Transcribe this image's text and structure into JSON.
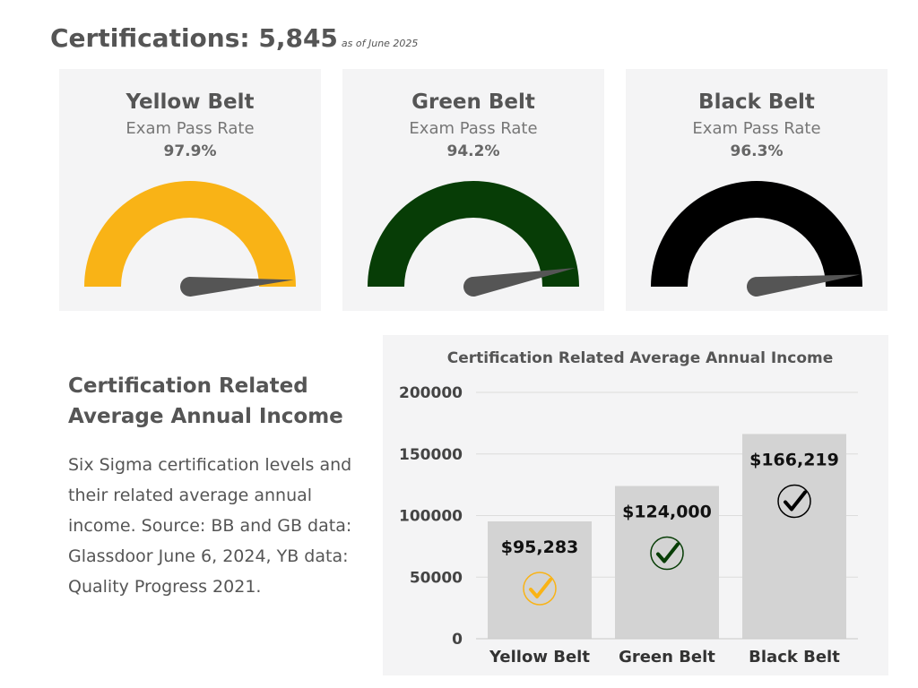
{
  "header": {
    "title": "Certifications: 5,845",
    "as_of": "as of June 2025"
  },
  "gauges": [
    {
      "belt": "Yellow Belt",
      "label": "Exam Pass Rate",
      "value_text": "97.9%",
      "value": 97.9,
      "color": "#f9b316"
    },
    {
      "belt": "Green Belt",
      "label": "Exam Pass Rate",
      "value_text": "94.2%",
      "value": 94.2,
      "color": "#073d06"
    },
    {
      "belt": "Black Belt",
      "label": "Exam Pass Rate",
      "value_text": "96.3%",
      "value": 96.3,
      "color": "#000000"
    }
  ],
  "income_text": {
    "heading": "Certification Related Average Annual Income",
    "body": "Six Sigma certification levels and their related average annual income. Source: BB and GB data: Glassdoor June 6, 2024, YB data: Quality Progress 2021."
  },
  "chart_data": {
    "type": "bar",
    "title": "Certification Related Average Annual Income",
    "categories": [
      "Yellow Belt",
      "Green Belt",
      "Black Belt"
    ],
    "values": [
      95283,
      124000,
      166219
    ],
    "value_labels": [
      "$95,283",
      "$124,000",
      "$166,219"
    ],
    "y_ticks": [
      "0",
      "50000",
      "100000",
      "150000",
      "200000"
    ],
    "ylim": [
      0,
      200000
    ],
    "grid": true,
    "xlabel": "",
    "ylabel": "",
    "check_colors": [
      "#f9b316",
      "#073d06",
      "#000000"
    ],
    "bar_color": "#d3d3d3"
  }
}
